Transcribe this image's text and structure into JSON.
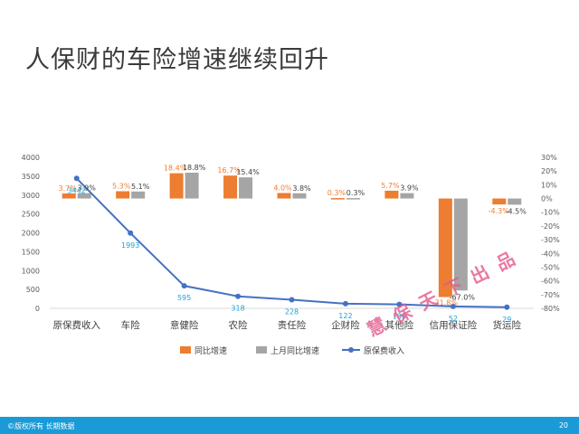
{
  "slide": {
    "title": "人保财的车险增速继续回升",
    "watermark": "慧保天下出品",
    "footer_left": "©版权所有 长期数据",
    "page_number": "20"
  },
  "chart_data": {
    "type": "bar",
    "categories": [
      "原保费收入",
      "车险",
      "意健险",
      "农险",
      "责任险",
      "企财险",
      "其他险",
      "信用保证险",
      "货运险"
    ],
    "series": [
      {
        "name": "同比增速",
        "type": "bar",
        "axis": "right",
        "color": "#ed7d31",
        "values": [
          3.7,
          5.3,
          18.4,
          16.7,
          4.0,
          0.3,
          5.7,
          -71.8,
          -4.3
        ],
        "labels": [
          "3.7%",
          "5.3%",
          "18.4%",
          "16.7%",
          "4.0%",
          "0.3%",
          "5.7%",
          "-71.8%",
          "-4.3%"
        ]
      },
      {
        "name": "上月同比增速",
        "type": "bar",
        "axis": "right",
        "color": "#a5a5a5",
        "values": [
          3.9,
          5.1,
          18.8,
          15.4,
          3.8,
          0.3,
          3.9,
          -67.0,
          -4.5
        ],
        "labels": [
          "3.9%",
          "5.1%",
          "18.8%",
          "15.4%",
          "3.8%",
          "0.3%",
          "3.9%",
          "-67.0%",
          "-4.5%"
        ]
      },
      {
        "name": "原保费收入",
        "type": "line",
        "axis": "left",
        "color": "#4472c4",
        "values": [
          3442,
          1993,
          595,
          318,
          228,
          122,
          106,
          52,
          29
        ],
        "labels": [
          "3442",
          "1993",
          "595",
          "318",
          "228",
          "122",
          "106",
          "52",
          "29"
        ]
      }
    ],
    "left_axis": {
      "min": 0,
      "max": 4000,
      "step": 500,
      "ticks": [
        "0",
        "500",
        "1000",
        "1500",
        "2000",
        "2500",
        "3000",
        "3500",
        "4000"
      ]
    },
    "right_axis": {
      "min": -80,
      "max": 30,
      "step": 10,
      "ticks": [
        "-80%",
        "-70%",
        "-60%",
        "-50%",
        "-40%",
        "-30%",
        "-20%",
        "-10%",
        "0%",
        "10%",
        "20%",
        "30%"
      ]
    },
    "grid": false,
    "legend_position": "bottom"
  }
}
